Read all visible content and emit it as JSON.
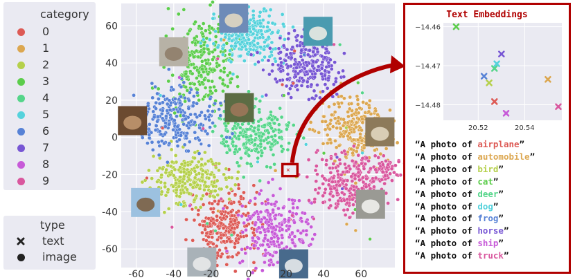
{
  "legend_category": {
    "title": "category",
    "items": [
      {
        "label": "0",
        "color": "#dd5a55"
      },
      {
        "label": "1",
        "color": "#dca750"
      },
      {
        "label": "2",
        "color": "#b5d04b"
      },
      {
        "label": "3",
        "color": "#5ccd4c"
      },
      {
        "label": "4",
        "color": "#55d58a"
      },
      {
        "label": "5",
        "color": "#55d2dc"
      },
      {
        "label": "6",
        "color": "#5782d6"
      },
      {
        "label": "7",
        "color": "#7756d4"
      },
      {
        "label": "8",
        "color": "#c75ad8"
      },
      {
        "label": "9",
        "color": "#d9579e"
      }
    ]
  },
  "legend_type": {
    "title": "type",
    "items": [
      {
        "label": "text",
        "marker": "x"
      },
      {
        "label": "image",
        "marker": "o"
      }
    ]
  },
  "chart_data": [
    {
      "type": "scatter",
      "title": "",
      "xlabel": "",
      "ylabel": "",
      "xlim": [
        -68,
        78
      ],
      "ylim": [
        -70,
        72
      ],
      "xticks": [
        -60,
        -40,
        -20,
        0,
        20,
        40,
        60
      ],
      "yticks": [
        60,
        40,
        20,
        0,
        -20,
        -40,
        -60
      ],
      "grid": true,
      "clusters": [
        {
          "category": "0",
          "center": [
            -13,
            -48
          ]
        },
        {
          "category": "1",
          "center": [
            57,
            4
          ]
        },
        {
          "category": "2",
          "center": [
            -32,
            -22
          ]
        },
        {
          "category": "3",
          "center": [
            -25,
            40
          ]
        },
        {
          "category": "4",
          "center": [
            3,
            2
          ]
        },
        {
          "category": "5",
          "center": [
            0,
            55
          ]
        },
        {
          "category": "6",
          "center": [
            -38,
            10
          ]
        },
        {
          "category": "7",
          "center": [
            30,
            38
          ]
        },
        {
          "category": "8",
          "center": [
            13,
            -50
          ]
        },
        {
          "category": "9",
          "center": [
            53,
            -25
          ]
        }
      ],
      "highlight_box": {
        "x": [
          18,
          26
        ],
        "y": [
          -14.4,
          -20.8
        ],
        "text_point": [
          21,
          -17.5
        ]
      }
    },
    {
      "type": "scatter",
      "title": "Text Embeddings",
      "xlim": [
        20.505,
        20.556
      ],
      "ylim": [
        -14.484,
        -14.459
      ],
      "xticks": [
        20.52,
        20.54
      ],
      "yticks": [
        -14.46,
        -14.47,
        -14.48
      ],
      "points": [
        {
          "category": "0",
          "x": 20.527,
          "y": -14.4792
        },
        {
          "category": "1",
          "x": 20.55,
          "y": -14.4735
        },
        {
          "category": "2",
          "x": 20.5247,
          "y": -14.4744
        },
        {
          "category": "3",
          "x": 20.5105,
          "y": -14.46
        },
        {
          "category": "4",
          "x": 20.527,
          "y": -14.4707
        },
        {
          "category": "5",
          "x": 20.528,
          "y": -14.4695
        },
        {
          "category": "6",
          "x": 20.5225,
          "y": -14.4727
        },
        {
          "category": "7",
          "x": 20.53,
          "y": -14.467
        },
        {
          "category": "8",
          "x": 20.532,
          "y": -14.4822
        },
        {
          "category": "9",
          "x": 20.5545,
          "y": -14.4805
        }
      ]
    }
  ],
  "prompts": [
    {
      "prefix": "“A photo of ",
      "word": "airplane",
      "suffix": "”",
      "color": "#dd5a55"
    },
    {
      "prefix": "“A photo of ",
      "word": "automobile",
      "suffix": "”",
      "color": "#dca750"
    },
    {
      "prefix": "“A photo of ",
      "word": "bird",
      "suffix": "”",
      "color": "#b5d04b"
    },
    {
      "prefix": "“A photo of ",
      "word": "cat",
      "suffix": "”",
      "color": "#5ccd4c"
    },
    {
      "prefix": "“A photo of ",
      "word": "deer",
      "suffix": "”",
      "color": "#55d58a"
    },
    {
      "prefix": "“A photo of ",
      "word": "dog",
      "suffix": "”",
      "color": "#55d2dc"
    },
    {
      "prefix": "“A photo of ",
      "word": "frog",
      "suffix": "”",
      "color": "#5782d6"
    },
    {
      "prefix": "“A photo of ",
      "word": "horse",
      "suffix": "”",
      "color": "#7756d4"
    },
    {
      "prefix": "“A photo of ",
      "word": "ship",
      "suffix": "”",
      "color": "#c75ad8"
    },
    {
      "prefix": "“A photo of ",
      "word": "truck",
      "suffix": "”",
      "color": "#d9579e"
    }
  ],
  "thumbnails": [
    {
      "name": "dog-thumbnail",
      "center": [
        -8,
        64
      ],
      "bg": "#6e8bb8",
      "fg": "#e9dcc2"
    },
    {
      "name": "horse-thumbnail",
      "center": [
        37,
        57
      ],
      "bg": "#4b9bb0",
      "fg": "#f3efe6"
    },
    {
      "name": "cat-thumbnail",
      "center": [
        -40,
        46
      ],
      "bg": "#b7b2a6",
      "fg": "#8d7a66"
    },
    {
      "name": "deer-thumbnail",
      "center": [
        -5,
        16
      ],
      "bg": "#5c6c44",
      "fg": "#a0775a"
    },
    {
      "name": "frog-thumbnail",
      "center": [
        -62,
        9
      ],
      "bg": "#6b4a30",
      "fg": "#c49a72"
    },
    {
      "name": "automobile-thumbnail",
      "center": [
        70,
        3
      ],
      "bg": "#8d7a5a",
      "fg": "#e6dcc6"
    },
    {
      "name": "bird-thumbnail",
      "center": [
        -55,
        -35
      ],
      "bg": "#9cc1e0",
      "fg": "#7a5a3a"
    },
    {
      "name": "truck-thumbnail",
      "center": [
        65,
        -36
      ],
      "bg": "#9a9a94",
      "fg": "#f4f4f2"
    },
    {
      "name": "airplane-thumbnail",
      "center": [
        -25,
        -67
      ],
      "bg": "#a9b2b8",
      "fg": "#ececec"
    },
    {
      "name": "ship-thumbnail",
      "center": [
        24,
        -68
      ],
      "bg": "#486a8c",
      "fg": "#f1f1f1"
    }
  ]
}
